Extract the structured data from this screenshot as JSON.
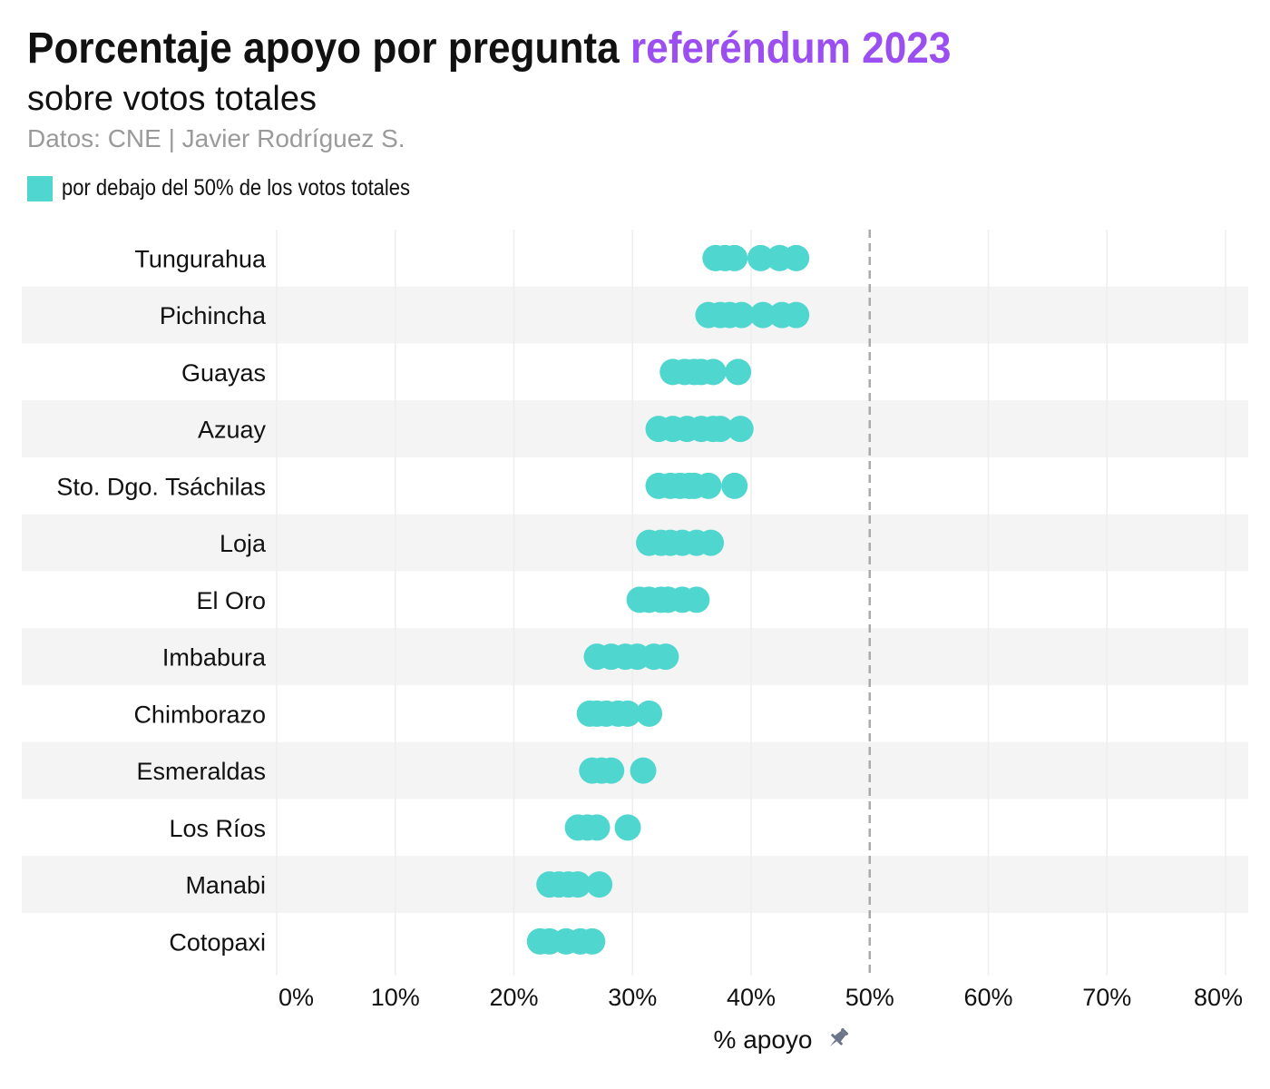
{
  "header": {
    "title_main": "Porcentaje apoyo por pregunta ",
    "title_highlight": "referéndum 2023",
    "subtitle": "sobre votos totales",
    "source": "Datos: CNE | Javier Rodríguez S."
  },
  "legend": {
    "label": "por debajo del 50% de los votos totales",
    "color": "#4fd6cf"
  },
  "colors": {
    "point": "#4fd6cf",
    "highlight": "#9b4ff0",
    "band": "#f4f4f4",
    "grid": "#eeeeee",
    "reference_line": "#aaaaaa"
  },
  "icons": {
    "axis_title_icon": "pin-icon"
  },
  "chart_data": {
    "type": "scatter",
    "orientation": "horizontal dot strip",
    "xlabel": "% apoyo",
    "xlim": [
      0,
      80
    ],
    "xticks": [
      "0%",
      "10%",
      "20%",
      "30%",
      "40%",
      "50%",
      "60%",
      "70%",
      "80%"
    ],
    "reference_line": 50,
    "grid": true,
    "legend_placement": "top-left",
    "categories": [
      {
        "name": "Tungurahua",
        "values": [
          37.0,
          37.8,
          38.6,
          40.8,
          42.4,
          43.8
        ]
      },
      {
        "name": "Pichincha",
        "values": [
          36.4,
          37.4,
          38.2,
          39.2,
          41.0,
          42.6,
          43.8
        ]
      },
      {
        "name": "Guayas",
        "values": [
          33.4,
          34.4,
          35.2,
          35.8,
          36.8,
          38.9
        ]
      },
      {
        "name": "Azuay",
        "values": [
          32.2,
          33.4,
          34.6,
          35.8,
          36.8,
          37.4,
          39.1
        ]
      },
      {
        "name": "Sto. Dgo. Tsáchilas",
        "values": [
          32.2,
          33.2,
          34.0,
          34.8,
          35.2,
          36.4,
          38.6
        ]
      },
      {
        "name": "Loja",
        "values": [
          31.4,
          32.4,
          33.2,
          34.2,
          35.4,
          36.6
        ]
      },
      {
        "name": "El Oro",
        "values": [
          30.6,
          31.4,
          32.4,
          33.0,
          34.2,
          35.4
        ]
      },
      {
        "name": "Imbabura",
        "values": [
          27.0,
          28.2,
          29.4,
          30.4,
          31.8,
          32.8
        ]
      },
      {
        "name": "Chimborazo",
        "values": [
          26.4,
          27.0,
          27.8,
          28.8,
          29.6,
          31.4
        ]
      },
      {
        "name": "Esmeraldas",
        "values": [
          26.6,
          27.4,
          28.2,
          30.9
        ]
      },
      {
        "name": "Los Ríos",
        "values": [
          25.4,
          26.2,
          27.0,
          29.6
        ]
      },
      {
        "name": "Manabi",
        "values": [
          23.0,
          23.8,
          24.6,
          25.4,
          27.2
        ]
      },
      {
        "name": "Cotopaxi",
        "values": [
          22.2,
          23.0,
          24.4,
          25.6,
          26.6
        ]
      }
    ]
  }
}
